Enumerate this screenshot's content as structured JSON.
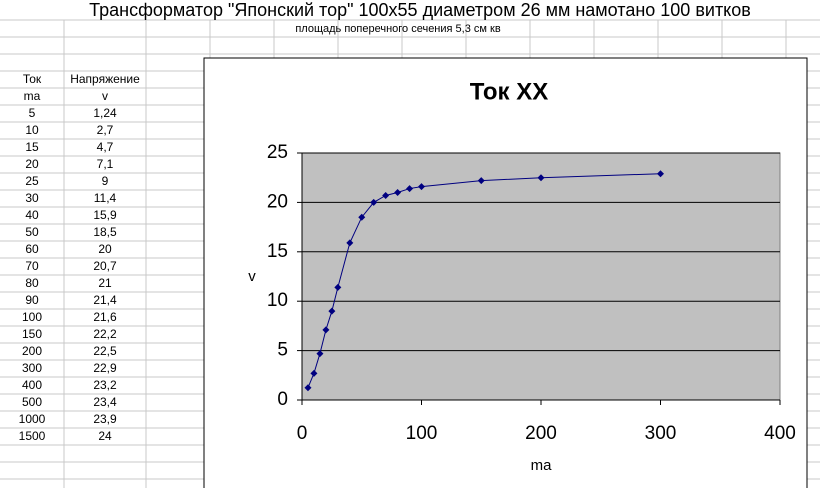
{
  "header": {
    "title": "Трансформатор \"Японский тор\" 100x55  диаметром 26 мм  намотано 100 витков",
    "subtitle": "площадь поперечного сечения 5,3 см кв"
  },
  "table": {
    "columns": [
      "Ток",
      "Напряжение"
    ],
    "units": [
      "ma",
      "v"
    ],
    "rows": [
      [
        "5",
        "1,24"
      ],
      [
        "10",
        "2,7"
      ],
      [
        "15",
        "4,7"
      ],
      [
        "20",
        "7,1"
      ],
      [
        "25",
        "9"
      ],
      [
        "30",
        "11,4"
      ],
      [
        "40",
        "15,9"
      ],
      [
        "50",
        "18,5"
      ],
      [
        "60",
        "20"
      ],
      [
        "70",
        "20,7"
      ],
      [
        "80",
        "21"
      ],
      [
        "90",
        "21,4"
      ],
      [
        "100",
        "21,6"
      ],
      [
        "150",
        "22,2"
      ],
      [
        "200",
        "22,5"
      ],
      [
        "300",
        "22,9"
      ],
      [
        "400",
        "23,2"
      ],
      [
        "500",
        "23,4"
      ],
      [
        "1000",
        "23,9"
      ],
      [
        "1500",
        "24"
      ]
    ]
  },
  "chart_data": {
    "type": "line",
    "title": "Ток XX",
    "x_label": "ma",
    "y_label": "v",
    "x": [
      5,
      10,
      15,
      20,
      25,
      30,
      40,
      50,
      60,
      70,
      80,
      90,
      100,
      150,
      200,
      300
    ],
    "values": [
      1.24,
      2.7,
      4.7,
      7.1,
      9,
      11.4,
      15.9,
      18.5,
      20,
      20.7,
      21,
      21.4,
      21.6,
      22.2,
      22.5,
      22.9
    ],
    "color": "#000080",
    "xlim": [
      0,
      400
    ],
    "xticks": [
      0,
      100,
      200,
      300,
      400
    ],
    "ylim": [
      0,
      25
    ],
    "yticks": [
      0,
      5,
      10,
      15,
      20,
      25
    ],
    "grid": true
  }
}
